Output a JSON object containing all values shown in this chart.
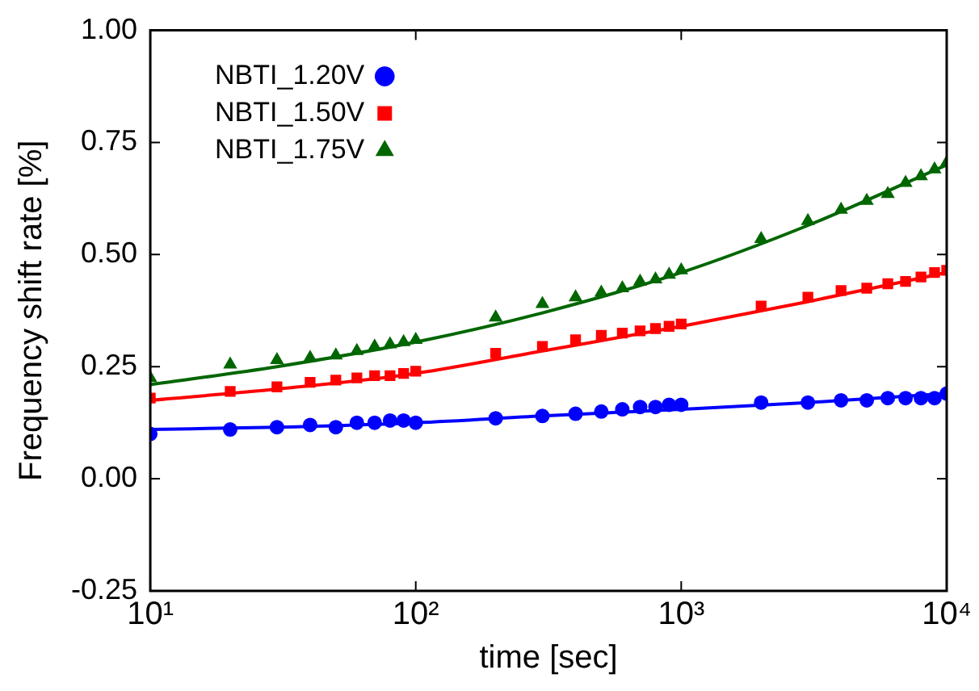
{
  "chart_data": {
    "type": "scatter",
    "xlabel": "time [sec]",
    "ylabel": "Frequency shift rate [%]",
    "log": "x",
    "xlim": [
      10,
      10000
    ],
    "ylim": [
      -0.25,
      1.0
    ],
    "xticks": [
      {
        "value": 10,
        "label": "10¹"
      },
      {
        "value": 100,
        "label": "10²"
      },
      {
        "value": 1000,
        "label": "10³"
      },
      {
        "value": 10000,
        "label": "10⁴"
      }
    ],
    "yticks": [
      {
        "value": -0.25,
        "label": "-0.25"
      },
      {
        "value": 0,
        "label": "0.00"
      },
      {
        "value": 0.25,
        "label": "0.25"
      },
      {
        "value": 0.5,
        "label": "0.50"
      },
      {
        "value": 0.75,
        "label": "0.75"
      },
      {
        "value": 1.0,
        "label": "1.00"
      }
    ],
    "grid": false,
    "legend": "top left",
    "x": [
      10,
      20,
      30,
      40,
      50,
      60,
      70,
      80,
      90,
      100,
      200,
      300,
      400,
      500,
      600,
      700,
      800,
      900,
      1000,
      2000,
      3000,
      4000,
      5000,
      6000,
      7000,
      8000,
      9000,
      10000
    ],
    "series": [
      {
        "name": "NBTI_1.20V",
        "color": "#0000ff",
        "marker": "circle",
        "values": [
          0.1,
          0.11,
          0.115,
          0.12,
          0.115,
          0.125,
          0.125,
          0.13,
          0.13,
          0.125,
          0.135,
          0.14,
          0.145,
          0.15,
          0.155,
          0.16,
          0.16,
          0.165,
          0.165,
          0.17,
          0.17,
          0.175,
          0.175,
          0.18,
          0.18,
          0.18,
          0.18,
          0.19
        ]
      },
      {
        "name": "NBTI_1.50V",
        "color": "#ff0000",
        "marker": "square",
        "values": [
          0.18,
          0.195,
          0.205,
          0.215,
          0.22,
          0.225,
          0.23,
          0.23,
          0.235,
          0.24,
          0.28,
          0.295,
          0.31,
          0.32,
          0.325,
          0.33,
          0.335,
          0.34,
          0.345,
          0.385,
          0.405,
          0.42,
          0.425,
          0.435,
          0.44,
          0.45,
          0.46,
          0.465
        ]
      },
      {
        "name": "NBTI_1.75V",
        "color": "#006600",
        "marker": "triangle",
        "values": [
          0.225,
          0.255,
          0.265,
          0.27,
          0.275,
          0.285,
          0.295,
          0.3,
          0.305,
          0.31,
          0.36,
          0.39,
          0.405,
          0.415,
          0.425,
          0.44,
          0.445,
          0.455,
          0.465,
          0.535,
          0.575,
          0.6,
          0.62,
          0.635,
          0.66,
          0.675,
          0.69,
          0.705
        ]
      },
      {
        "type": "line",
        "color": "#0000ff",
        "x": [
          10,
          30,
          100,
          300,
          1000,
          3000,
          10000
        ],
        "values": [
          0.11,
          0.115,
          0.125,
          0.14,
          0.155,
          0.17,
          0.19
        ]
      },
      {
        "type": "line",
        "color": "#ff0000",
        "x": [
          10,
          30,
          100,
          300,
          1000,
          3000,
          10000
        ],
        "values": [
          0.175,
          0.2,
          0.235,
          0.285,
          0.34,
          0.395,
          0.46
        ]
      },
      {
        "type": "line",
        "color": "#006600",
        "x": [
          10,
          30,
          100,
          300,
          1000,
          3000,
          10000
        ],
        "values": [
          0.21,
          0.25,
          0.305,
          0.37,
          0.46,
          0.565,
          0.7
        ]
      }
    ]
  }
}
